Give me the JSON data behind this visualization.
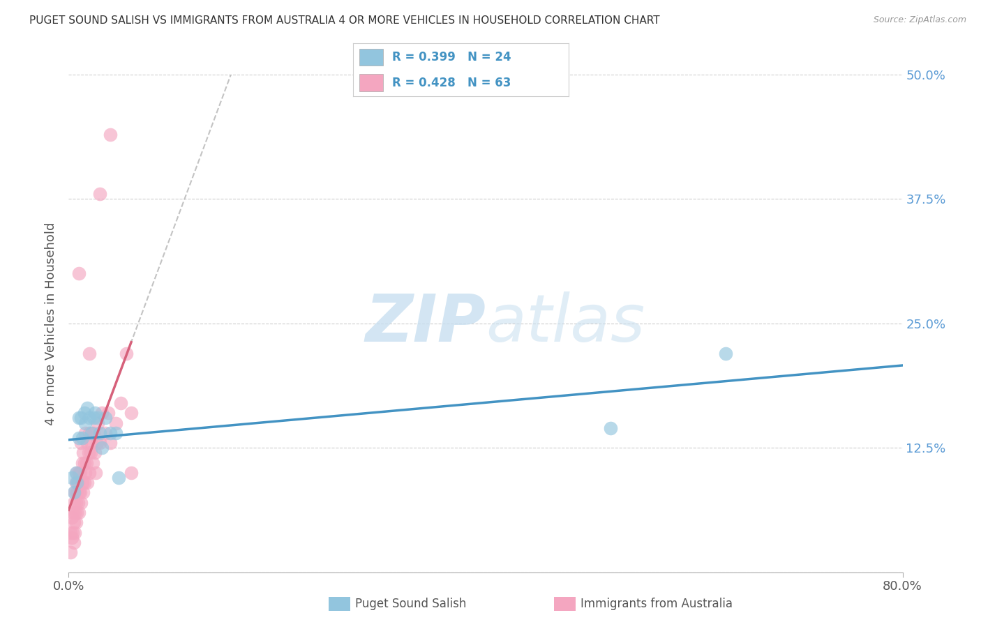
{
  "title": "PUGET SOUND SALISH VS IMMIGRANTS FROM AUSTRALIA 4 OR MORE VEHICLES IN HOUSEHOLD CORRELATION CHART",
  "source": "Source: ZipAtlas.com",
  "ylabel_label": "4 or more Vehicles in Household",
  "legend_labels": [
    "Puget Sound Salish",
    "Immigrants from Australia"
  ],
  "blue_R": "R = 0.399",
  "blue_N": "N = 24",
  "pink_R": "R = 0.428",
  "pink_N": "N = 63",
  "blue_color": "#92c5de",
  "pink_color": "#f4a6c0",
  "blue_line_color": "#4393c3",
  "pink_line_color": "#d6607a",
  "tick_color": "#5b9bd5",
  "watermark_color": "#c8dff0",
  "xlim": [
    0.0,
    0.8
  ],
  "ylim": [
    0.0,
    0.5
  ],
  "blue_scatter_x": [
    0.003,
    0.005,
    0.007,
    0.008,
    0.01,
    0.01,
    0.012,
    0.013,
    0.015,
    0.016,
    0.018,
    0.02,
    0.022,
    0.024,
    0.025,
    0.027,
    0.03,
    0.032,
    0.035,
    0.04,
    0.045,
    0.048,
    0.52,
    0.63
  ],
  "blue_scatter_y": [
    0.095,
    0.08,
    0.1,
    0.09,
    0.155,
    0.135,
    0.155,
    0.135,
    0.16,
    0.15,
    0.165,
    0.155,
    0.14,
    0.155,
    0.16,
    0.155,
    0.14,
    0.125,
    0.155,
    0.14,
    0.14,
    0.095,
    0.145,
    0.22
  ],
  "pink_scatter_x": [
    0.002,
    0.002,
    0.003,
    0.003,
    0.004,
    0.004,
    0.005,
    0.005,
    0.005,
    0.006,
    0.006,
    0.006,
    0.007,
    0.007,
    0.007,
    0.008,
    0.008,
    0.008,
    0.009,
    0.009,
    0.01,
    0.01,
    0.01,
    0.011,
    0.011,
    0.012,
    0.012,
    0.013,
    0.013,
    0.014,
    0.014,
    0.015,
    0.015,
    0.016,
    0.016,
    0.017,
    0.018,
    0.018,
    0.019,
    0.02,
    0.02,
    0.021,
    0.022,
    0.023,
    0.024,
    0.025,
    0.026,
    0.027,
    0.028,
    0.03,
    0.032,
    0.035,
    0.038,
    0.04,
    0.045,
    0.05,
    0.055,
    0.06,
    0.01,
    0.02,
    0.03,
    0.04,
    0.06
  ],
  "pink_scatter_y": [
    0.02,
    0.04,
    0.035,
    0.055,
    0.04,
    0.06,
    0.03,
    0.05,
    0.07,
    0.04,
    0.06,
    0.08,
    0.05,
    0.07,
    0.09,
    0.06,
    0.08,
    0.1,
    0.07,
    0.09,
    0.06,
    0.08,
    0.1,
    0.08,
    0.1,
    0.07,
    0.13,
    0.09,
    0.11,
    0.08,
    0.12,
    0.09,
    0.11,
    0.1,
    0.14,
    0.11,
    0.13,
    0.09,
    0.12,
    0.1,
    0.14,
    0.12,
    0.13,
    0.11,
    0.14,
    0.12,
    0.1,
    0.13,
    0.15,
    0.13,
    0.16,
    0.14,
    0.16,
    0.13,
    0.15,
    0.17,
    0.22,
    0.16,
    0.3,
    0.22,
    0.38,
    0.44,
    0.1
  ],
  "background_color": "#ffffff",
  "grid_color": "#cccccc"
}
